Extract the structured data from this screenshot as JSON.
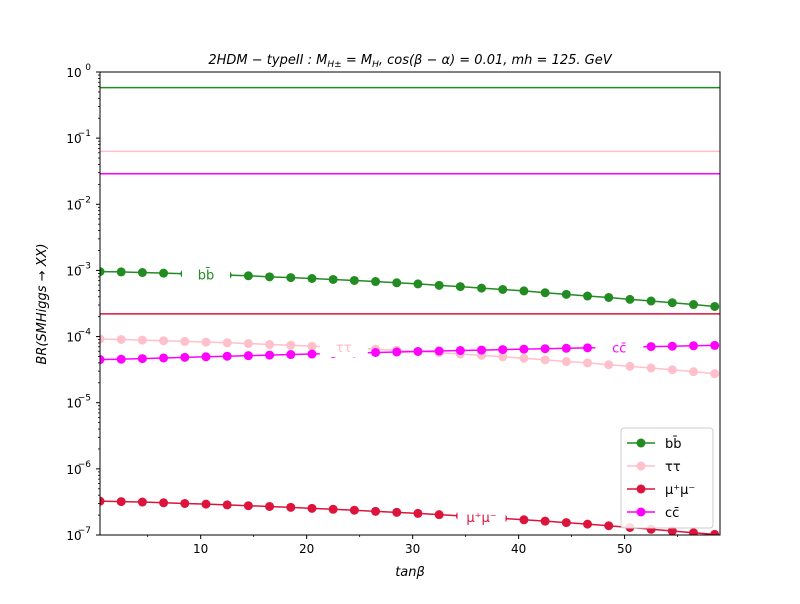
{
  "chart_data": {
    "type": "line",
    "title": "2HDM − typeII : M_{H±} = M_H, cos(β − α) = 0.01, mh = 125. GeV",
    "xlabel": "tanβ",
    "ylabel": "BR(SMHiggs → XX)",
    "xlim": [
      0.5,
      59
    ],
    "ylim": [
      1e-07,
      1
    ],
    "yscale": "log",
    "grid": false,
    "legend_position": "lower-right",
    "x_ticks": [
      10,
      20,
      30,
      40,
      50
    ],
    "y_ticks": [
      {
        "value": 1e-07,
        "base": "10",
        "exp": "−7"
      },
      {
        "value": 1e-06,
        "base": "10",
        "exp": "−6"
      },
      {
        "value": 1e-05,
        "base": "10",
        "exp": "−5"
      },
      {
        "value": 0.0001,
        "base": "10",
        "exp": "−4"
      },
      {
        "value": 0.001,
        "base": "10",
        "exp": "−3"
      },
      {
        "value": 0.01,
        "base": "10",
        "exp": "−2"
      },
      {
        "value": 0.1,
        "base": "10",
        "exp": "−1"
      },
      {
        "value": 1,
        "base": "10",
        "exp": "0"
      }
    ],
    "x": [
      0.5,
      2.5,
      4.5,
      6.5,
      8.5,
      10.5,
      12.5,
      14.5,
      16.5,
      18.5,
      20.5,
      22.5,
      24.5,
      26.5,
      28.5,
      30.5,
      32.5,
      34.5,
      36.5,
      38.5,
      40.5,
      42.5,
      44.5,
      46.5,
      48.5,
      50.5,
      52.5,
      54.5,
      56.5,
      58.5
    ],
    "series": [
      {
        "name": "bb̄",
        "color": "#228b22",
        "values": [
          0.00096,
          0.00095,
          0.00093,
          0.00091,
          0.00089,
          0.00087,
          0.00085,
          0.00083,
          0.0008,
          0.00078,
          0.000755,
          0.00073,
          0.000705,
          0.00068,
          0.00065,
          0.000625,
          0.000595,
          0.00057,
          0.00054,
          0.000515,
          0.00049,
          0.00046,
          0.000435,
          0.00041,
          0.00039,
          0.000365,
          0.000345,
          0.000325,
          0.000305,
          0.000285
        ],
        "inline_label": {
          "text": "bb̄",
          "x": 10.5
        }
      },
      {
        "name": "ττ",
        "color": "#ffc0cb",
        "values": [
          9.2e-05,
          9.05e-05,
          8.85e-05,
          8.65e-05,
          8.45e-05,
          8.25e-05,
          8.05e-05,
          7.85e-05,
          7.6e-05,
          7.4e-05,
          7.15e-05,
          6.95e-05,
          6.7e-05,
          6.45e-05,
          6.2e-05,
          5.95e-05,
          5.7e-05,
          5.45e-05,
          5.2e-05,
          4.95e-05,
          4.7e-05,
          4.45e-05,
          4.2e-05,
          4e-05,
          3.75e-05,
          3.55e-05,
          3.35e-05,
          3.15e-05,
          2.95e-05,
          2.75e-05
        ],
        "inline_label": {
          "text": "ττ",
          "x": 23.5
        }
      },
      {
        "name": "μ⁺μ⁻",
        "color": "#dc143c",
        "values": [
          3.25e-07,
          3.2e-07,
          3.15e-07,
          3.07e-07,
          3e-07,
          2.93e-07,
          2.85e-07,
          2.77e-07,
          2.7e-07,
          2.62e-07,
          2.53e-07,
          2.45e-07,
          2.37e-07,
          2.28e-07,
          2.2e-07,
          2.12e-07,
          2.03e-07,
          1.95e-07,
          1.87e-07,
          1.78e-07,
          1.7e-07,
          1.62e-07,
          1.54e-07,
          1.46e-07,
          1.38e-07,
          1.3e-07,
          1.22e-07,
          1.15e-07,
          1.08e-07,
          1.02e-07
        ],
        "inline_label": {
          "text": "μ⁺μ⁻",
          "x": 36.5
        }
      },
      {
        "name": "cc̄",
        "color": "#ff00ff",
        "values": [
          4.5e-05,
          4.55e-05,
          4.65e-05,
          4.75e-05,
          4.85e-05,
          4.95e-05,
          5.05e-05,
          5.15e-05,
          5.25e-05,
          5.35e-05,
          5.45e-05,
          5.55e-05,
          5.65e-05,
          5.75e-05,
          5.85e-05,
          5.95e-05,
          6.05e-05,
          6.15e-05,
          6.25e-05,
          6.35e-05,
          6.45e-05,
          6.55e-05,
          6.65e-05,
          6.75e-05,
          6.85e-05,
          6.95e-05,
          7.05e-05,
          7.15e-05,
          7.25e-05,
          7.35e-05
        ],
        "inline_label": {
          "text": "cc̄",
          "x": 49.5
        }
      }
    ],
    "hlines": [
      {
        "value": 0.58,
        "color": "#228b22"
      },
      {
        "value": 0.063,
        "color": "#ffc0cb"
      },
      {
        "value": 0.029,
        "color": "#ff00ff"
      },
      {
        "value": 0.00022,
        "color": "#dc143c"
      }
    ]
  }
}
